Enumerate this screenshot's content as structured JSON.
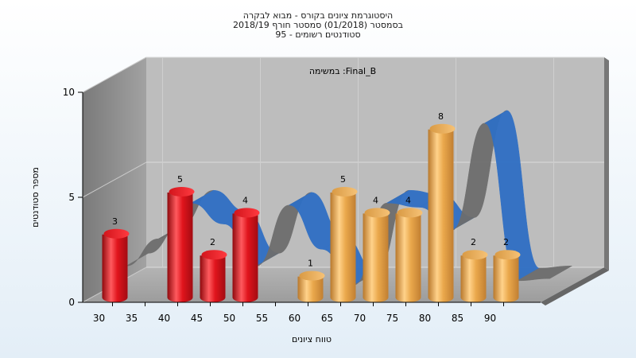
{
  "chart_data": {
    "type": "bar",
    "title_lines": [
      "היסטוגרמת ציונים בקורס - מבוא לבקרה",
      "בסמסטר  (01/2018)  סמסטר חורף 2018/19",
      "סטודנטים רשומים - 95"
    ],
    "annotation": "במשימה :Final_B",
    "xlabel": "טווח ציונים",
    "ylabel": "מספר סטודנטים",
    "x_ticks": [
      "30",
      "35",
      "40",
      "45",
      "50",
      "55",
      "60",
      "65",
      "70",
      "75",
      "80",
      "85",
      "90"
    ],
    "y_ticks": [
      "0",
      "5",
      "10"
    ],
    "ylim": [
      0,
      10
    ],
    "bars": [
      {
        "x": 30,
        "value": 3,
        "label": "3",
        "color": "red"
      },
      {
        "x": 40,
        "value": 5,
        "label": "5",
        "color": "red"
      },
      {
        "x": 45,
        "value": 2,
        "label": "2",
        "color": "red"
      },
      {
        "x": 50,
        "value": 4,
        "label": "4",
        "color": "red"
      },
      {
        "x": 60,
        "value": 1,
        "label": "1",
        "color": "gold"
      },
      {
        "x": 65,
        "value": 5,
        "label": "5",
        "color": "gold"
      },
      {
        "x": 70,
        "value": 4,
        "label": "4",
        "color": "gold"
      },
      {
        "x": 75,
        "value": 4,
        "label": "4",
        "color": "gold"
      },
      {
        "x": 80,
        "value": 8,
        "label": "8",
        "color": "gold"
      },
      {
        "x": 85,
        "value": 2,
        "label": "2",
        "color": "gold"
      },
      {
        "x": 90,
        "value": 2,
        "label": "2",
        "color": "gold"
      }
    ],
    "distribution_curve": {
      "x": [
        30,
        35,
        40,
        45,
        50,
        55,
        60,
        65,
        70,
        75,
        80,
        85,
        90,
        95
      ],
      "y": [
        1.5,
        2.8,
        4.5,
        3.5,
        1.5,
        4.4,
        2.3,
        0.6,
        4.5,
        4.3,
        3.2,
        8.3,
        0.8,
        0.9
      ]
    },
    "colors": {
      "red": "#e0141c",
      "gold": "#e8a848",
      "curve_blue": "#2f6fc4",
      "curve_gray": "#6d6d6d",
      "back_wall": "#b8b8b8",
      "left_wall": "#8e8e8e",
      "floor": "#a9a9a9",
      "grid": "#dcdcdc"
    },
    "grid": true,
    "legend": "none"
  }
}
